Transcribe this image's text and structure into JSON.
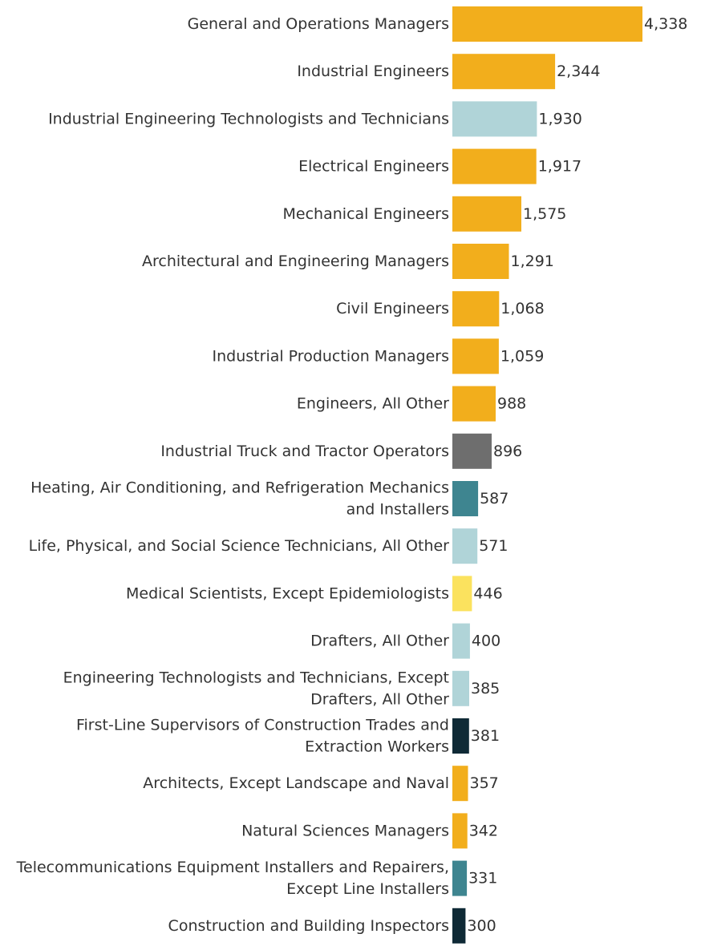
{
  "chart_data": {
    "type": "bar",
    "orientation": "horizontal",
    "title": "",
    "xlabel": "",
    "ylabel": "",
    "grid": false,
    "xlim": [
      0,
      4338
    ],
    "categories": [
      [
        "General and Operations Managers"
      ],
      [
        "Industrial Engineers"
      ],
      [
        "Industrial Engineering Technologists and Technicians"
      ],
      [
        "Electrical Engineers"
      ],
      [
        "Mechanical Engineers"
      ],
      [
        "Architectural and Engineering Managers"
      ],
      [
        "Civil Engineers"
      ],
      [
        "Industrial Production Managers"
      ],
      [
        "Engineers, All Other"
      ],
      [
        "Industrial Truck and Tractor Operators"
      ],
      [
        "Heating, Air Conditioning, and Refrigeration Mechanics",
        "and Installers"
      ],
      [
        "Life, Physical, and Social Science Technicians, All Other"
      ],
      [
        "Medical Scientists, Except Epidemiologists"
      ],
      [
        "Drafters, All Other"
      ],
      [
        "Engineering Technologists and Technicians, Except",
        "Drafters, All Other"
      ],
      [
        "First-Line Supervisors of Construction Trades and",
        "Extraction Workers"
      ],
      [
        "Architects, Except Landscape and Naval"
      ],
      [
        "Natural Sciences Managers"
      ],
      [
        "Telecommunications Equipment Installers and Repairers,",
        "Except Line Installers"
      ],
      [
        "Construction and Building Inspectors"
      ]
    ],
    "values": [
      4338,
      2344,
      1930,
      1917,
      1575,
      1291,
      1068,
      1059,
      988,
      896,
      587,
      571,
      446,
      400,
      385,
      381,
      357,
      342,
      331,
      300
    ],
    "value_labels": [
      "4,338",
      "2,344",
      "1,930",
      "1,917",
      "1,575",
      "1,291",
      "1,068",
      "1,059",
      "988",
      "896",
      "587",
      "571",
      "446",
      "400",
      "385",
      "381",
      "357",
      "342",
      "331",
      "300"
    ],
    "bar_colors": [
      "#F2AE1C",
      "#F2AE1C",
      "#B0D4D8",
      "#F2AE1C",
      "#F2AE1C",
      "#F2AE1C",
      "#F2AE1C",
      "#F2AE1C",
      "#F2AE1C",
      "#6E6E6E",
      "#3E8590",
      "#B0D4D8",
      "#FBE25E",
      "#B0D4D8",
      "#B0D4D8",
      "#0F2A36",
      "#F2AE1C",
      "#F2AE1C",
      "#3E8590",
      "#0F2A36"
    ]
  }
}
